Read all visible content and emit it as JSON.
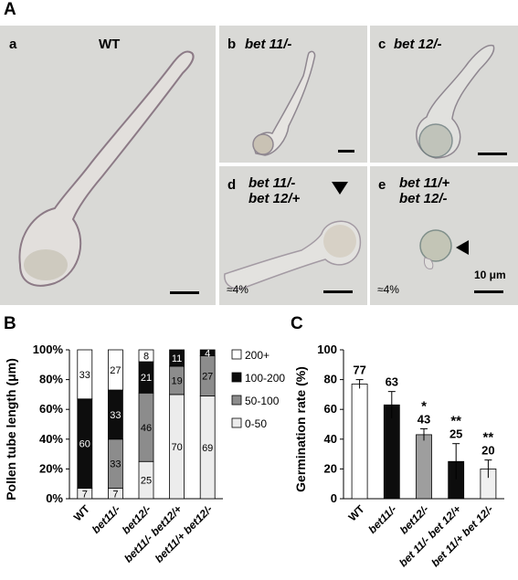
{
  "figure_label": "A",
  "panels": [
    {
      "letter": "a",
      "genotype": "WT",
      "note": ""
    },
    {
      "letter": "b",
      "genotype": "bet 11/-",
      "note": ""
    },
    {
      "letter": "c",
      "genotype": "bet 12/-",
      "note": ""
    },
    {
      "letter": "d",
      "genotype": "bet 11/- bet 12/+",
      "line1": "bet 11/-",
      "line2": "bet 12/+",
      "note": "≈4%"
    },
    {
      "letter": "e",
      "genotype": "bet 11/+ bet 12/-",
      "line1": "bet 11/+",
      "line2": "bet 12/-",
      "note": "≈4%"
    }
  ],
  "scale_bar_label": "10 μm",
  "chart_data": [
    {
      "panel": "B",
      "type": "bar",
      "stacked": true,
      "ylabel": "Pollen tube length (μm)",
      "ylim": [
        0,
        100
      ],
      "yticks": [
        "0%",
        "20%",
        "40%",
        "60%",
        "80%",
        "100%"
      ],
      "categories": [
        "WT",
        "bet11/-",
        "bet12/-",
        "bet11/- bet12/+",
        "bet11/+ bet12/-"
      ],
      "series": [
        {
          "name": "0-50",
          "color": "#ececec",
          "values": [
            7,
            7,
            25,
            70,
            69
          ]
        },
        {
          "name": "50-100",
          "color": "#8c8c8c",
          "values": [
            0,
            33,
            46,
            19,
            27
          ]
        },
        {
          "name": "100-200",
          "color": "#0d0d0d",
          "values": [
            60,
            33,
            21,
            11,
            4
          ]
        },
        {
          "name": "200+",
          "color": "#ffffff",
          "values": [
            33,
            27,
            8,
            0,
            0
          ]
        }
      ],
      "legend": [
        "200+",
        "100-200",
        "50-100",
        "0-50"
      ],
      "legend_position": "right"
    },
    {
      "panel": "C",
      "type": "bar",
      "ylabel": "Germination rate (%)",
      "ylim": [
        0,
        100
      ],
      "yticks": [
        "0",
        "20",
        "40",
        "60",
        "80",
        "100"
      ],
      "categories": [
        "WT",
        "bet11/-",
        "bet12/-",
        "bet 11/- bet 12/+",
        "bet 11/+ bet 12/-"
      ],
      "values": [
        77,
        63,
        43,
        25,
        20
      ],
      "error_bars": [
        3,
        9,
        4,
        12,
        6
      ],
      "significance": [
        "",
        "",
        "*",
        "**",
        "**"
      ],
      "colors": [
        "#ffffff",
        "#0d0d0d",
        "#9e9e9e",
        "#0d0d0d",
        "#f0f0f0"
      ]
    }
  ]
}
